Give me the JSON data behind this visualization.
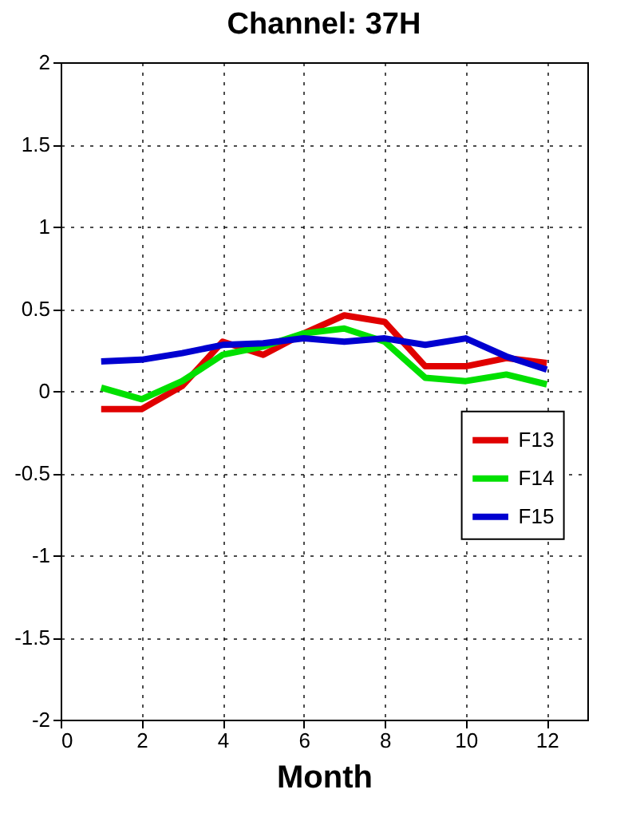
{
  "chart_data": {
    "type": "line",
    "title": "Channel: 37H",
    "xlabel": "Month",
    "x": [
      1,
      2,
      3,
      4,
      5,
      6,
      7,
      8,
      9,
      10,
      11,
      12
    ],
    "series": [
      {
        "name": "F13",
        "color": "#e00000",
        "values": [
          -0.11,
          -0.11,
          0.03,
          0.3,
          0.22,
          0.35,
          0.46,
          0.42,
          0.15,
          0.15,
          0.2,
          0.17
        ]
      },
      {
        "name": "F14",
        "color": "#00e000",
        "values": [
          0.02,
          -0.05,
          0.06,
          0.22,
          0.27,
          0.35,
          0.38,
          0.3,
          0.08,
          0.06,
          0.1,
          0.04
        ]
      },
      {
        "name": "F15",
        "color": "#0000d0",
        "values": [
          0.18,
          0.19,
          0.23,
          0.28,
          0.29,
          0.32,
          0.3,
          0.32,
          0.28,
          0.32,
          0.21,
          0.13
        ]
      }
    ],
    "xlim": [
      0,
      13
    ],
    "xticks": [
      0,
      2,
      4,
      6,
      8,
      10,
      12
    ],
    "ylim": [
      -2,
      2
    ],
    "yticks": [
      -2,
      -1.5,
      -1,
      -0.5,
      0,
      0.5,
      1,
      1.5,
      2
    ],
    "grid": true,
    "legend": "right",
    "line_style": "solid"
  }
}
